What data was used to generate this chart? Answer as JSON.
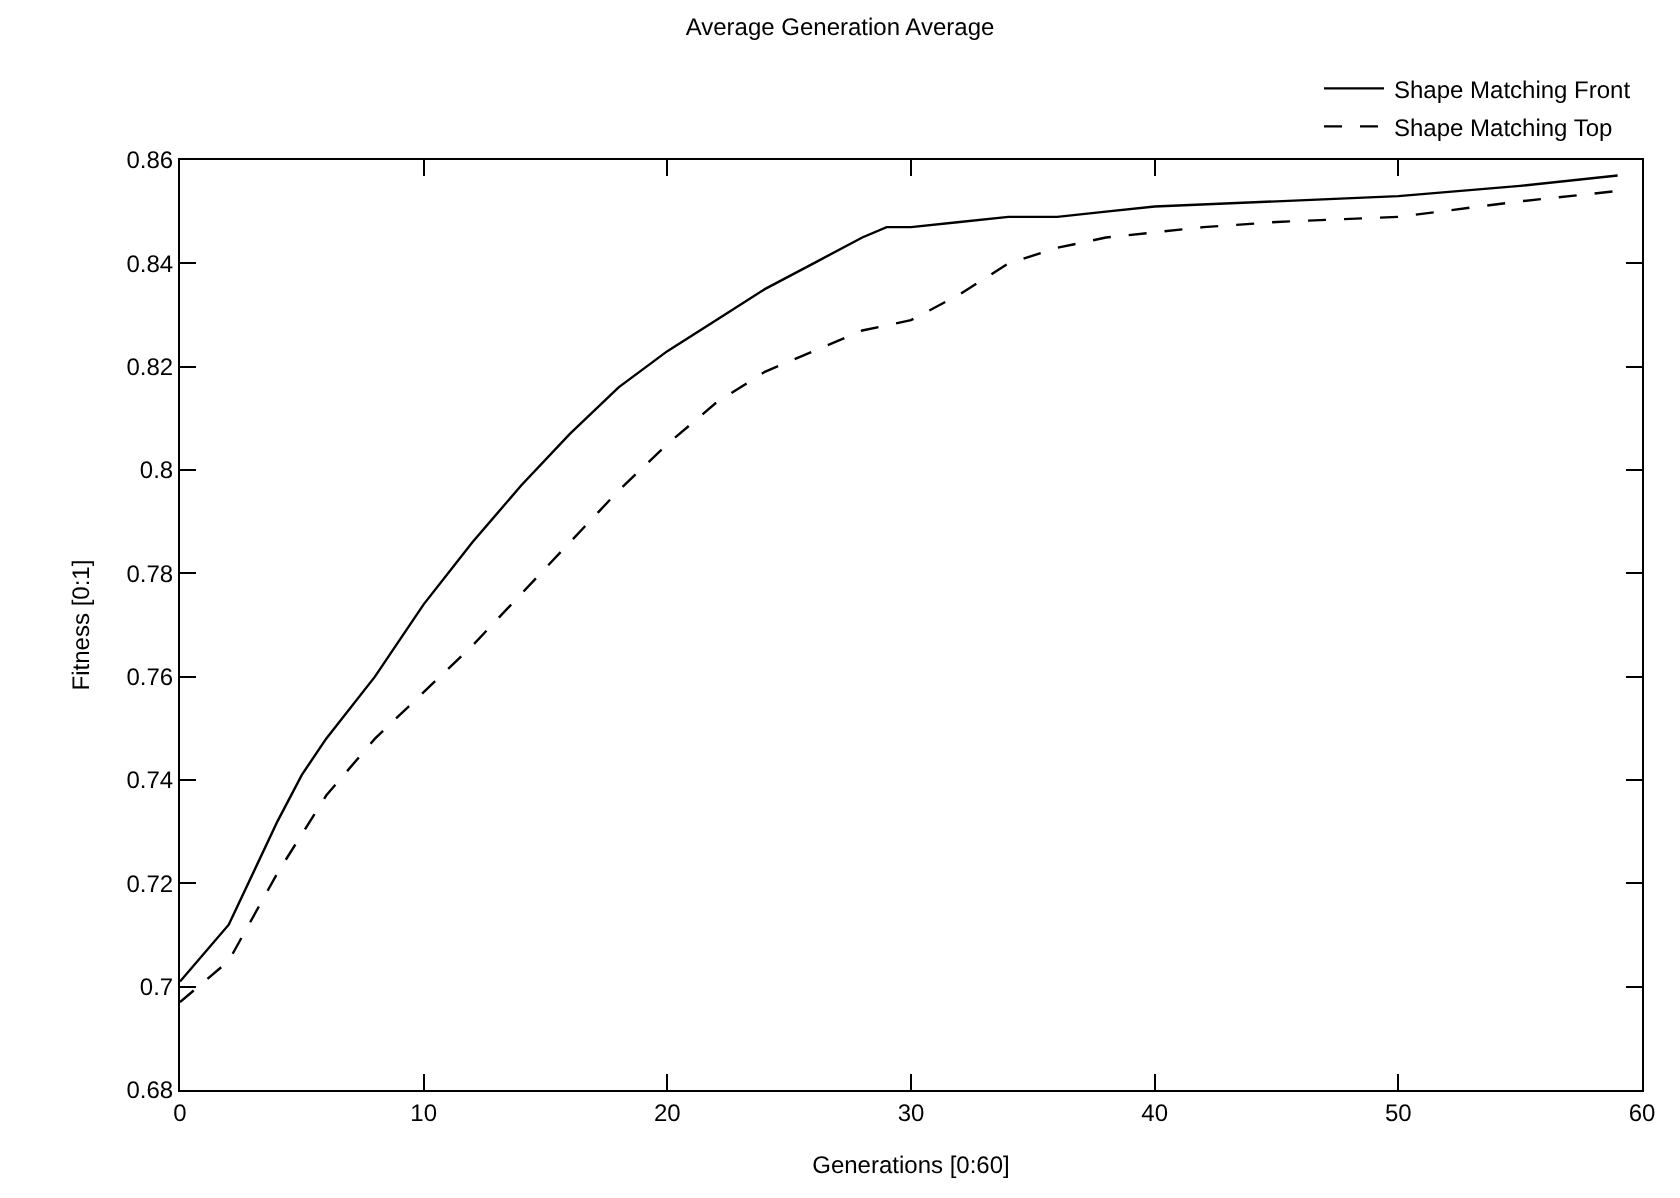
{
  "chart_data": {
    "type": "line",
    "title": "Average Generation Average",
    "xlabel": "Generations [0:60]",
    "ylabel": "Fitness [0:1]",
    "xlim": [
      0,
      60
    ],
    "xticks": [
      0,
      10,
      20,
      30,
      40,
      50,
      60
    ],
    "ylim": [
      0.68,
      0.86
    ],
    "yticks": [
      0.68,
      0.7,
      0.72,
      0.74,
      0.76,
      0.78,
      0.8,
      0.82,
      0.84,
      0.86
    ],
    "legend": "top right",
    "marker": "none",
    "series": [
      {
        "name": "Shape Matching Front",
        "color": "#000000",
        "line_style": "solid",
        "x": [
          0,
          2,
          4,
          5,
          6,
          8,
          10,
          12,
          14,
          16,
          18,
          20,
          22,
          24,
          26,
          28,
          29,
          30,
          32,
          34,
          36,
          38,
          40,
          45,
          50,
          55,
          59
        ],
        "values": [
          0.701,
          0.712,
          0.732,
          0.741,
          0.748,
          0.76,
          0.774,
          0.786,
          0.797,
          0.807,
          0.816,
          0.823,
          0.829,
          0.835,
          0.84,
          0.845,
          0.847,
          0.847,
          0.848,
          0.849,
          0.849,
          0.85,
          0.851,
          0.852,
          0.853,
          0.855,
          0.857
        ]
      },
      {
        "name": "Shape Matching Top",
        "color": "#000000",
        "line_style": "dashed",
        "x": [
          0,
          2,
          4,
          6,
          8,
          10,
          12,
          14,
          16,
          18,
          20,
          22,
          24,
          26,
          28,
          30,
          32,
          34,
          36,
          38,
          40,
          42,
          45,
          50,
          55,
          59
        ],
        "values": [
          0.697,
          0.705,
          0.722,
          0.737,
          0.748,
          0.757,
          0.766,
          0.776,
          0.786,
          0.796,
          0.805,
          0.813,
          0.819,
          0.823,
          0.827,
          0.829,
          0.834,
          0.84,
          0.843,
          0.845,
          0.846,
          0.847,
          0.848,
          0.849,
          0.852,
          0.854
        ]
      }
    ]
  }
}
